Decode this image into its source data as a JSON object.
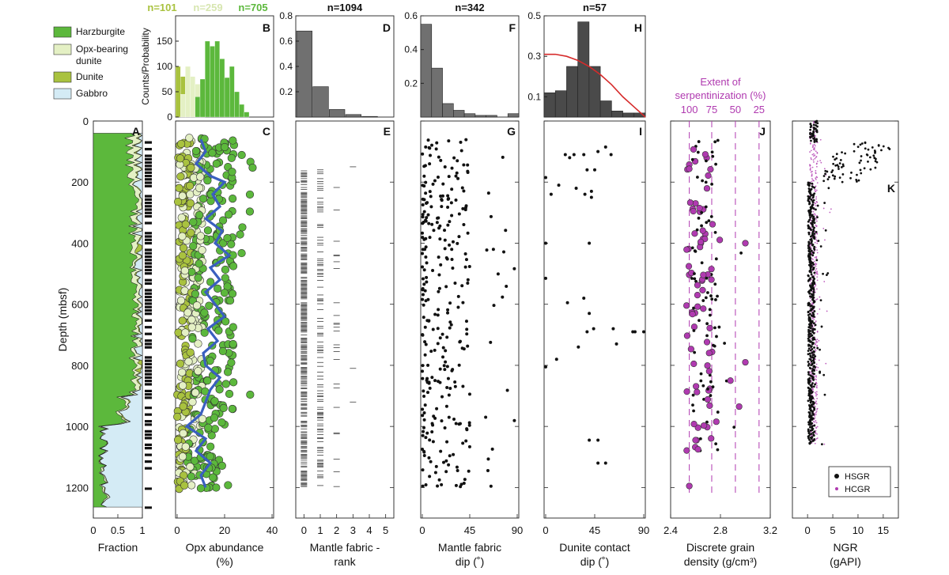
{
  "colors": {
    "harzburgite": "#5cb83c",
    "opx_dunite": "#e4f0c4",
    "dunite": "#a9c23f",
    "gabbro": "#d4ebf5",
    "bar_gray": "#707070",
    "bar_dark": "#4a4a4a",
    "serp": "#b03ab0",
    "running_mean": "#3a5fbf",
    "fit_curve": "#d62a2a",
    "n_b1": "#a9c23f",
    "n_b2": "#d7e6b0",
    "n_b3": "#5cb83c"
  },
  "legend": [
    {
      "key": "harzburgite",
      "label": "Harzburgite"
    },
    {
      "key": "opx_dunite",
      "label": "Opx-bearing dunite"
    },
    {
      "key": "dunite",
      "label": "Dunite"
    },
    {
      "key": "gabbro",
      "label": "Gabbro"
    }
  ],
  "depth_axis": {
    "label": "Depth (mbsf)",
    "ticks": [
      0,
      200,
      400,
      600,
      800,
      1000,
      1200
    ],
    "range": [
      0,
      1300
    ]
  },
  "chart_data": [
    {
      "id": "B",
      "type": "bar",
      "letter": "B",
      "ylabel": "Counts/Probability",
      "n_labels": [
        "n=101",
        "n=259",
        "n=705"
      ],
      "ylim": [
        0,
        200
      ],
      "yticks": [
        0,
        50,
        100,
        150
      ],
      "xlim": [
        0,
        40
      ],
      "series": [
        {
          "name": "Dunite",
          "bins": [
            0,
            2,
            4,
            6
          ],
          "values": [
            100,
            80,
            42,
            15
          ]
        },
        {
          "name": "Opx-bearing dunite",
          "bins": [
            2,
            4,
            6,
            8,
            10
          ],
          "values": [
            45,
            100,
            80,
            65,
            30
          ]
        },
        {
          "name": "Harzburgite",
          "bins": [
            8,
            10,
            12,
            14,
            16,
            18,
            20,
            22,
            24,
            26,
            28
          ],
          "values": [
            40,
            75,
            150,
            140,
            150,
            115,
            78,
            100,
            50,
            25,
            10
          ]
        }
      ]
    },
    {
      "id": "C",
      "type": "scatter",
      "letter": "C",
      "xlabel": "Opx abundance\n(%)",
      "xlim": [
        0,
        40
      ],
      "xticks": [
        0,
        20,
        40
      ],
      "running_mean": {
        "depth": [
          60,
          100,
          140,
          180,
          200,
          240,
          280,
          320,
          360,
          400,
          440,
          480,
          520,
          560,
          600,
          640,
          680,
          720,
          760,
          800,
          840,
          880,
          920,
          960,
          1000,
          1040,
          1080,
          1120,
          1160,
          1200
        ],
        "value": [
          10,
          12,
          8,
          14,
          20,
          15,
          18,
          12,
          19,
          16,
          22,
          14,
          18,
          12,
          16,
          20,
          13,
          17,
          11,
          12,
          18,
          14,
          12,
          10,
          4,
          12,
          8,
          14,
          10,
          12
        ]
      }
    },
    {
      "id": "D",
      "type": "bar",
      "letter": "D",
      "title": "n=1094",
      "categories": [
        "0",
        "1",
        "2",
        "3",
        "4",
        "5"
      ],
      "values": [
        0.68,
        0.24,
        0.06,
        0.02,
        0.005,
        0.0
      ],
      "ylim": [
        0,
        0.8
      ],
      "yticks": [
        0.2,
        0.4,
        0.6,
        0.8
      ]
    },
    {
      "id": "E",
      "type": "scatter",
      "letter": "E",
      "xlabel": "Mantle fabric -\nrank",
      "xlim": [
        -0.5,
        5.5
      ],
      "xticks": [
        0,
        1,
        2,
        3,
        4,
        5
      ]
    },
    {
      "id": "F",
      "type": "bar",
      "letter": "F",
      "title": "n=342",
      "bins": [
        0,
        10,
        20,
        30,
        40,
        50,
        60,
        70,
        80
      ],
      "values": [
        0.55,
        0.29,
        0.08,
        0.04,
        0.02,
        0.01,
        0.01,
        0.0,
        0.02
      ],
      "ylim": [
        0,
        0.6
      ],
      "yticks": [
        0.2,
        0.4,
        0.6
      ]
    },
    {
      "id": "G",
      "type": "scatter",
      "letter": "G",
      "xlabel": "Mantle fabric\ndip (˚)",
      "xlim": [
        0,
        90
      ],
      "xticks": [
        0,
        45,
        90
      ]
    },
    {
      "id": "H",
      "type": "bar",
      "letter": "H",
      "title": "n=57",
      "bins": [
        0,
        10,
        20,
        30,
        40,
        50,
        60,
        70,
        80
      ],
      "values": [
        0.12,
        0.13,
        0.25,
        0.47,
        0.25,
        0.08,
        0.03,
        0.02,
        0.02
      ],
      "ylim": [
        0,
        0.5
      ],
      "yticks": [
        0.1,
        0.3,
        0.5
      ],
      "fit_curve": {
        "x": [
          0,
          10,
          20,
          30,
          40,
          50,
          60,
          70,
          80,
          90
        ],
        "y": [
          0.31,
          0.31,
          0.3,
          0.28,
          0.25,
          0.21,
          0.16,
          0.1,
          0.05,
          0.0
        ]
      }
    },
    {
      "id": "I",
      "type": "scatter",
      "letter": "I",
      "xlabel": "Dunite contact\ndip (˚)",
      "xlim": [
        0,
        90
      ],
      "xticks": [
        0,
        45,
        90
      ]
    },
    {
      "id": "J",
      "type": "scatter",
      "letter": "J",
      "xlabel": "Discrete grain\ndensity (g/cm³)",
      "xlim": [
        2.4,
        3.2
      ],
      "xticks": [
        2.4,
        2.8,
        3.2
      ],
      "top_axis": {
        "title": "Extent of\nserpentinization (%)",
        "ticks": [
          {
            "label": "100",
            "density": 2.55
          },
          {
            "label": "75",
            "density": 2.73
          },
          {
            "label": "50",
            "density": 2.92
          },
          {
            "label": "25",
            "density": 3.11
          }
        ]
      }
    },
    {
      "id": "K",
      "type": "line",
      "letter": "K",
      "xlabel": "NGR\n(gAPI)",
      "xlim": [
        -3,
        18
      ],
      "xticks": [
        0,
        5,
        10,
        15
      ],
      "legend": [
        "HSGR",
        "HCGR"
      ]
    },
    {
      "id": "A",
      "type": "area",
      "letter": "A",
      "xlabel": "Fraction",
      "xlim": [
        0,
        1
      ],
      "xticks": [
        "0",
        "0.5",
        "1"
      ]
    }
  ]
}
